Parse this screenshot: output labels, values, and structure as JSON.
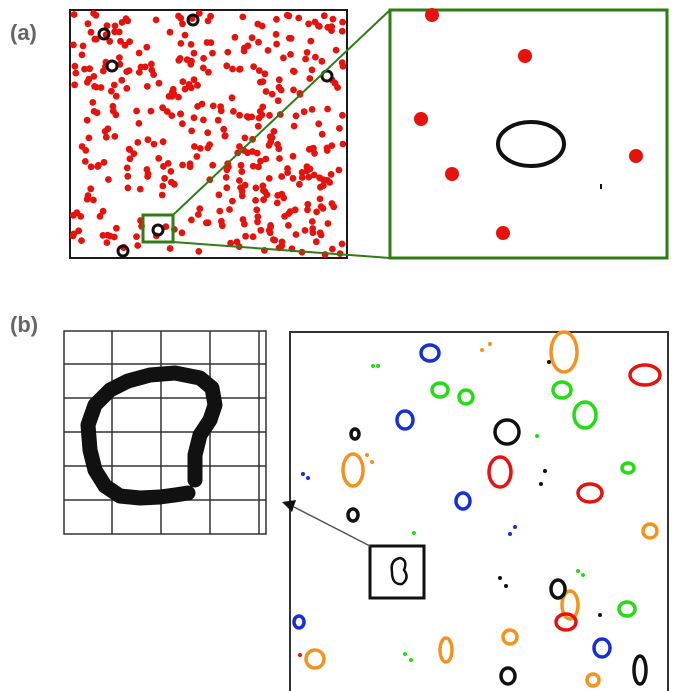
{
  "labels": {
    "a": "(a)",
    "b": "(b)"
  },
  "colors": {
    "particle": "#e8120c",
    "frame": "#1a1a1a",
    "zoom_box": "#2f7d13",
    "loop_black": "#111111",
    "loop_blue": "#1530d8",
    "loop_orange": "#f3931e",
    "loop_green": "#22dd11",
    "loop_red": "#e8120c",
    "grid": "#333333"
  },
  "icons": {
    "zoom_arrow": "arrow-head-icon"
  }
}
